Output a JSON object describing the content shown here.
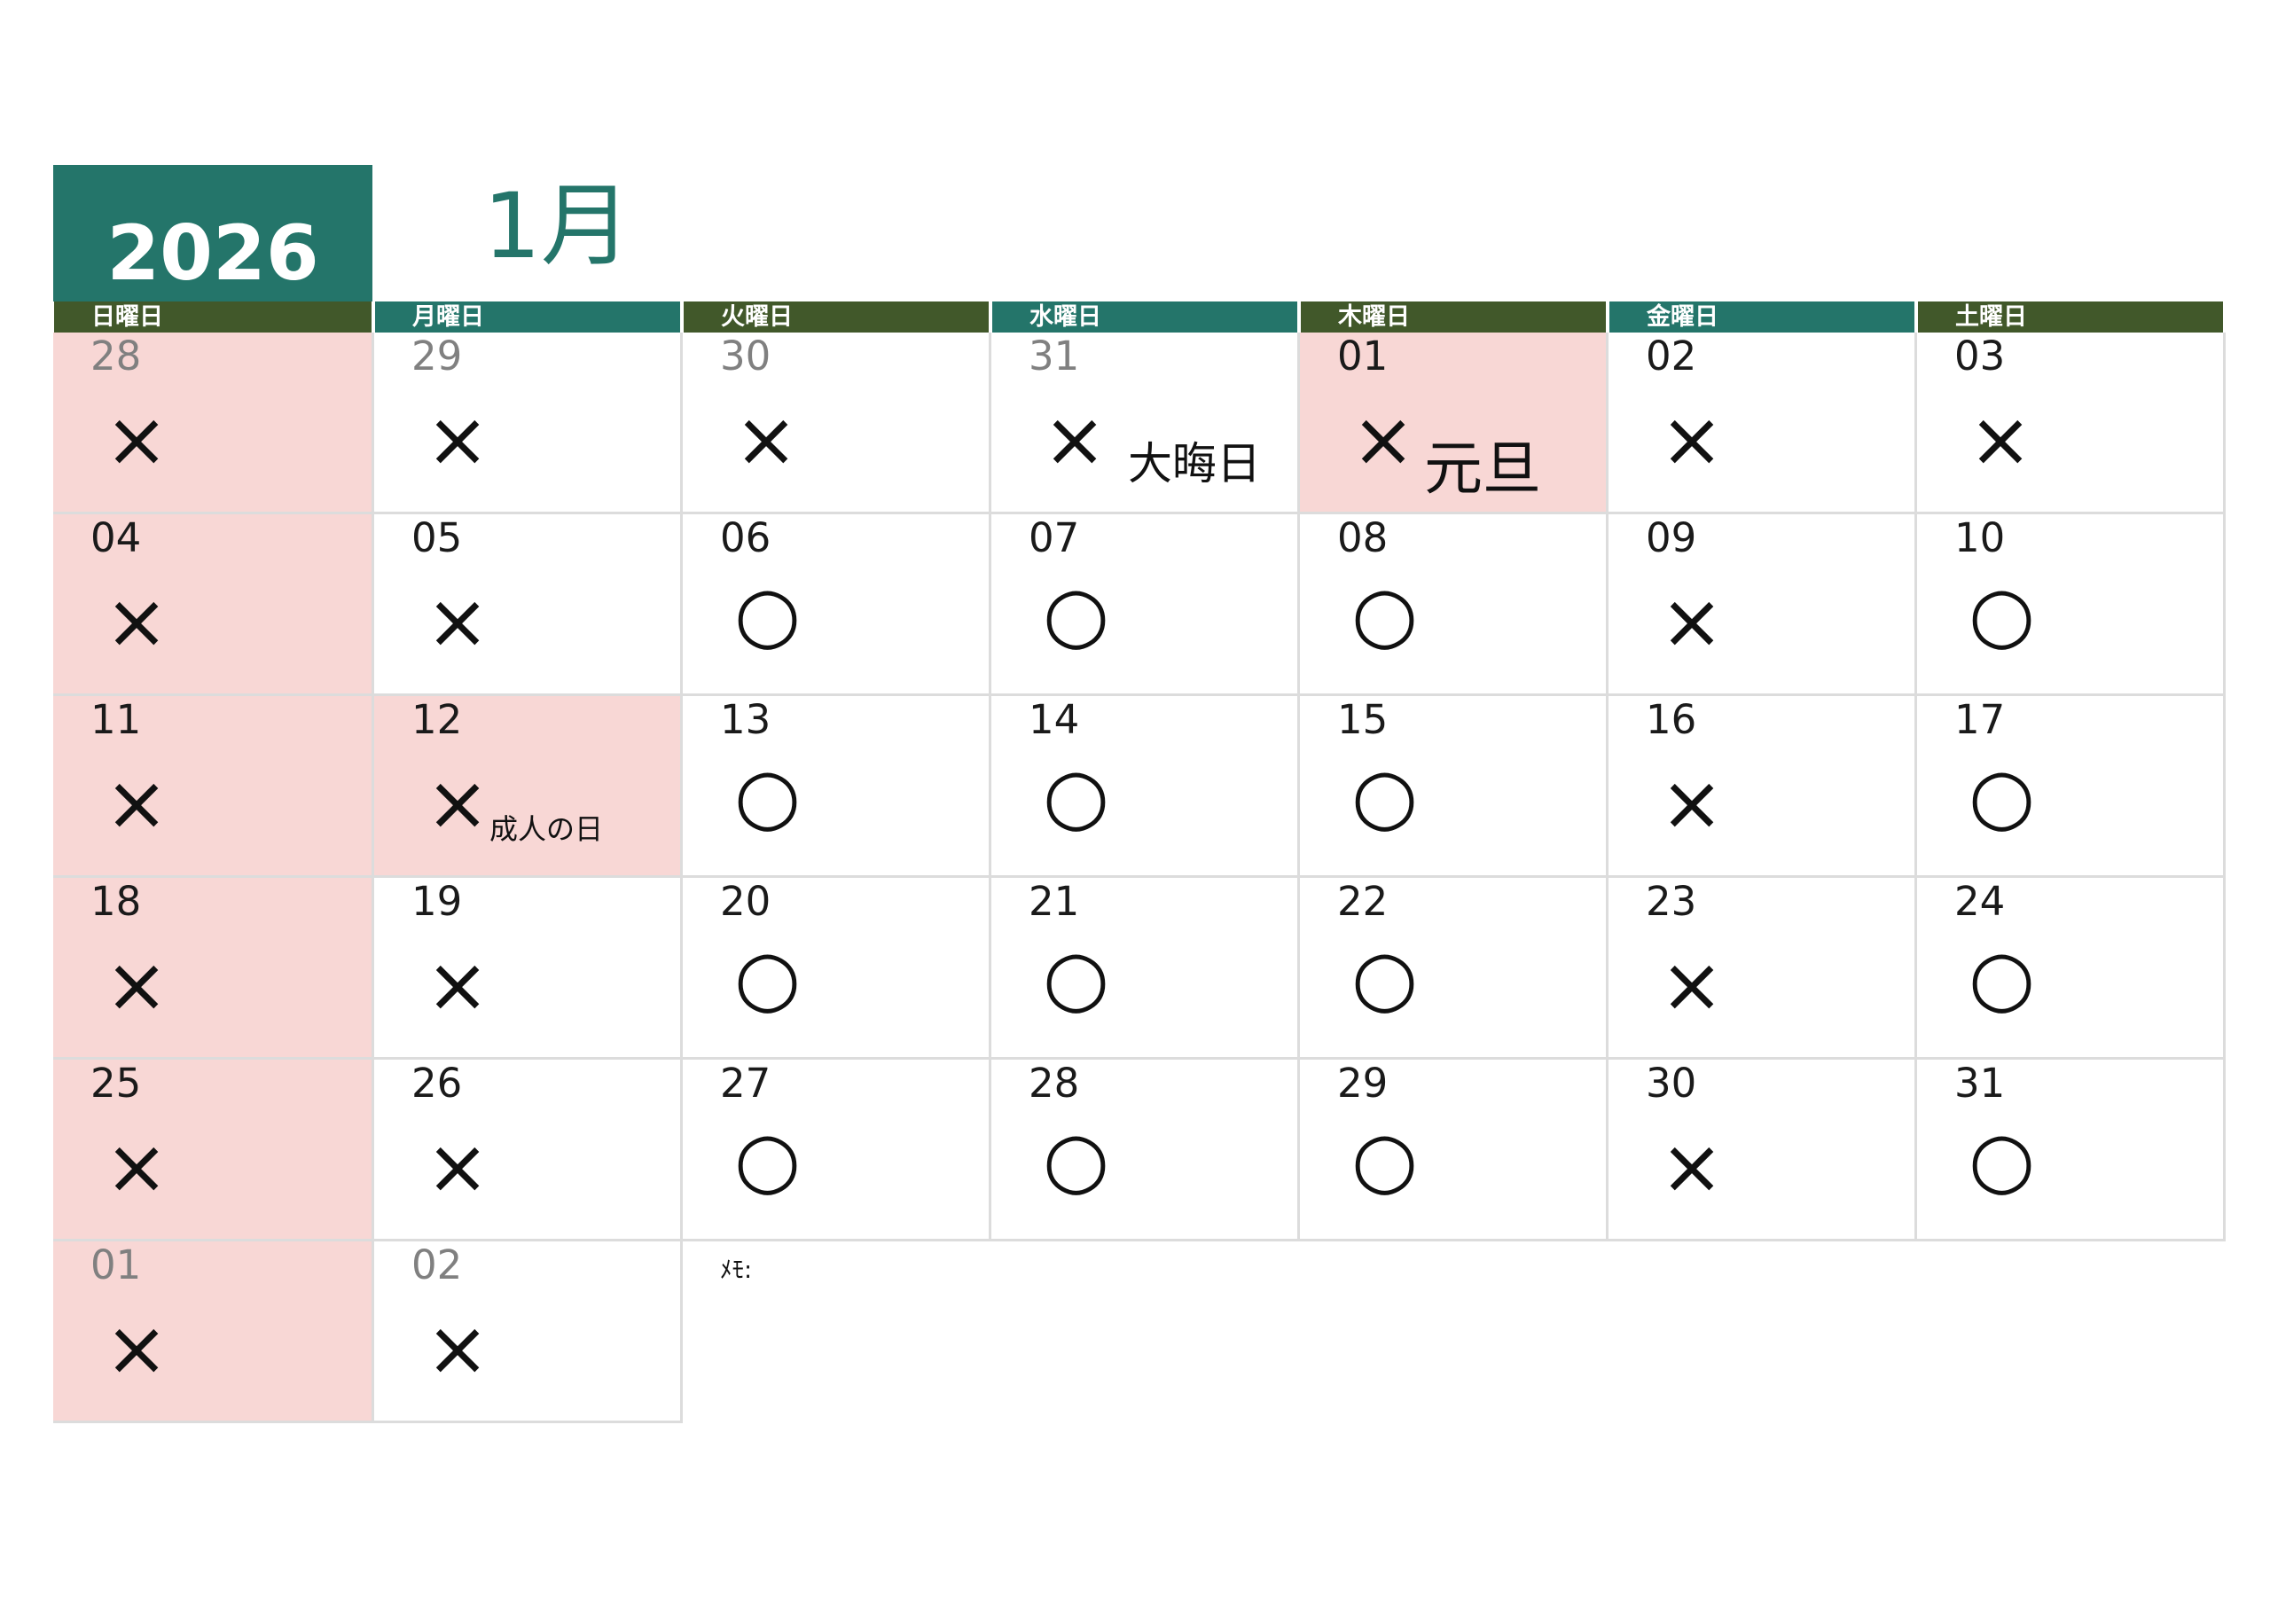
{
  "year": "2026",
  "month": "1月",
  "weekdays": [
    "日曜日",
    "月曜日",
    "火曜日",
    "水曜日",
    "木曜日",
    "金曜日",
    "土曜日"
  ],
  "colors": {
    "teal": "#24756a",
    "olive": "#41582a",
    "holiday_bg": "#f8d7d5",
    "grid": "#dcdcdc"
  },
  "weeks": [
    [
      {
        "day": "28",
        "other": true,
        "mark": "×",
        "holiday": true
      },
      {
        "day": "29",
        "other": true,
        "mark": "×"
      },
      {
        "day": "30",
        "other": true,
        "mark": "×"
      },
      {
        "day": "31",
        "other": true,
        "mark": "×",
        "label": "大晦日"
      },
      {
        "day": "01",
        "mark": "×",
        "holiday": true,
        "label": "元旦"
      },
      {
        "day": "02",
        "mark": "×"
      },
      {
        "day": "03",
        "mark": "×"
      }
    ],
    [
      {
        "day": "04",
        "mark": "×",
        "holiday": true
      },
      {
        "day": "05",
        "mark": "×"
      },
      {
        "day": "06",
        "mark": "○"
      },
      {
        "day": "07",
        "mark": "○"
      },
      {
        "day": "08",
        "mark": "○"
      },
      {
        "day": "09",
        "mark": "×"
      },
      {
        "day": "10",
        "mark": "○"
      }
    ],
    [
      {
        "day": "11",
        "mark": "×",
        "holiday": true
      },
      {
        "day": "12",
        "mark": "×",
        "holiday": true,
        "label": "成人の日"
      },
      {
        "day": "13",
        "mark": "○"
      },
      {
        "day": "14",
        "mark": "○"
      },
      {
        "day": "15",
        "mark": "○"
      },
      {
        "day": "16",
        "mark": "×"
      },
      {
        "day": "17",
        "mark": "○"
      }
    ],
    [
      {
        "day": "18",
        "mark": "×",
        "holiday": true
      },
      {
        "day": "19",
        "mark": "×"
      },
      {
        "day": "20",
        "mark": "○"
      },
      {
        "day": "21",
        "mark": "○"
      },
      {
        "day": "22",
        "mark": "○"
      },
      {
        "day": "23",
        "mark": "×"
      },
      {
        "day": "24",
        "mark": "○"
      }
    ],
    [
      {
        "day": "25",
        "mark": "×",
        "holiday": true
      },
      {
        "day": "26",
        "mark": "×"
      },
      {
        "day": "27",
        "mark": "○"
      },
      {
        "day": "28",
        "mark": "○"
      },
      {
        "day": "29",
        "mark": "○"
      },
      {
        "day": "30",
        "mark": "×"
      },
      {
        "day": "31",
        "mark": "○"
      }
    ],
    [
      {
        "day": "01",
        "other": true,
        "mark": "×",
        "holiday": true
      },
      {
        "day": "02",
        "other": true,
        "mark": "×"
      }
    ]
  ],
  "memo_label": "ﾒﾓ:"
}
